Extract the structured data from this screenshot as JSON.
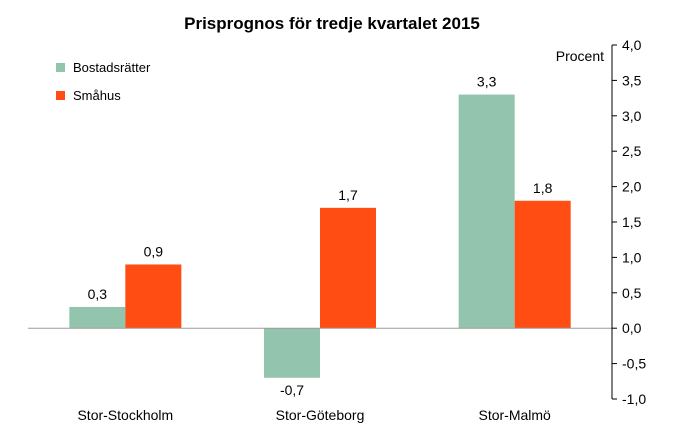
{
  "chart_data": {
    "type": "bar",
    "title": "Prisprognos för tredje kvartalet 2015",
    "unit_label": "Procent",
    "categories": [
      "Stor-Stockholm",
      "Stor-Göteborg",
      "Stor-Malmö"
    ],
    "series": [
      {
        "name": "Bostadsrätter",
        "color": "#93c4ad",
        "values": [
          0.3,
          -0.7,
          3.3
        ],
        "labels": [
          "0,3",
          "-0,7",
          "3,3"
        ]
      },
      {
        "name": "Småhus",
        "color": "#ff4d14",
        "values": [
          0.9,
          1.7,
          1.8
        ],
        "labels": [
          "0,9",
          "1,7",
          "1,8"
        ]
      }
    ],
    "ylim": [
      -1.0,
      4.0
    ],
    "yticks": [
      4.0,
      3.5,
      3.0,
      2.5,
      2.0,
      1.5,
      1.0,
      0.5,
      0.0,
      -0.5,
      -1.0
    ],
    "ytick_labels": [
      "4,0",
      "3,5",
      "3,0",
      "2,5",
      "2,0",
      "1,5",
      "1,0",
      "0,5",
      "0,0",
      "-0,5",
      "-1,0"
    ],
    "y_axis_side": "right",
    "legend_position": "top-left",
    "grid": false
  }
}
